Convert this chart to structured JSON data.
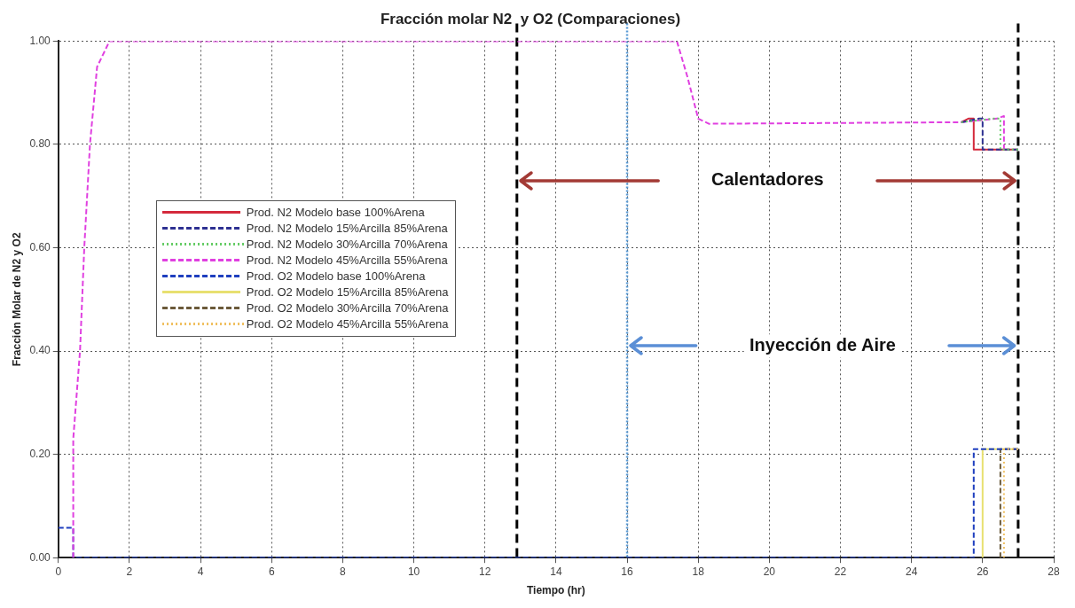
{
  "chart_data": {
    "type": "line",
    "title": "Fracción molar N2  y O2 (Comparaciones)",
    "xlabel": "Tiempo (hr)",
    "ylabel": "Fracción Molar de N2 y O2",
    "xlim": [
      0,
      28
    ],
    "xticks": [
      0,
      2,
      4,
      6,
      8,
      10,
      12,
      14,
      16,
      18,
      20,
      22,
      24,
      26,
      28
    ],
    "ylim": [
      0,
      1
    ],
    "yticks": [
      {
        "value": 0,
        "label": "0.00"
      },
      {
        "value": 0.2,
        "label": "0.20"
      },
      {
        "value": 0.4,
        "label": "0.40"
      },
      {
        "value": 0.6,
        "label": "0.60"
      },
      {
        "value": 0.8,
        "label": "0.80"
      },
      {
        "value": 1,
        "label": "1.00"
      }
    ],
    "grid": true,
    "legend": "left",
    "marker": "none",
    "series": [
      {
        "name": "Prod. N2 Modelo base 100%Arena",
        "color": "#d42a3c",
        "line_style": "solid",
        "x": [
          25.4,
          25.6,
          25.75,
          25.75,
          27.0
        ],
        "values": [
          0.843,
          0.85,
          0.85,
          0.79,
          0.79
        ]
      },
      {
        "name": "Prod. N2 Modelo 15%Arcilla 85%Arena",
        "color": "#2e3192",
        "line_style": "dashed",
        "x": [
          25.4,
          25.9,
          26.0,
          26.0,
          27.0
        ],
        "values": [
          0.843,
          0.85,
          0.85,
          0.79,
          0.79
        ]
      },
      {
        "name": "Prod. N2 Modelo 30%Arcilla 70%Arena",
        "color": "#66cc66",
        "line_style": "dotted",
        "x": [
          25.4,
          26.3,
          26.5,
          26.5,
          27.0
        ],
        "values": [
          0.843,
          0.85,
          0.85,
          0.79,
          0.79
        ]
      },
      {
        "name": "Prod. N2 Modelo 45%Arcilla 55%Arena",
        "color": "#e040e0",
        "line_style": "dashed",
        "x": [
          0.42,
          0.42,
          0.61,
          0.73,
          0.89,
          1.09,
          1.44,
          17.4,
          17.7,
          18.0,
          18.3,
          25.4,
          26.4,
          26.6,
          26.6
        ],
        "values": [
          0,
          0.23,
          0.4,
          0.6,
          0.8,
          0.95,
          1.0,
          1.0,
          0.93,
          0.85,
          0.84,
          0.843,
          0.85,
          0.855,
          0.79
        ]
      },
      {
        "name": "Prod. O2 Modelo base 100%Arena",
        "color": "#1f3fbf",
        "line_style": "dashed",
        "x": [
          0,
          0.42,
          0.42,
          25.75,
          25.75,
          27.0
        ],
        "values": [
          0.058,
          0.058,
          0,
          0,
          0.21,
          0.21
        ]
      },
      {
        "name": "Prod. O2 Modelo 15%Arcilla 85%Arena",
        "color": "#e8e070",
        "line_style": "solid",
        "x": [
          26.0,
          26.0,
          27.0
        ],
        "values": [
          0,
          0.21,
          0.21
        ]
      },
      {
        "name": "Prod. O2 Modelo 30%Arcilla 70%Arena",
        "color": "#6b5a3a",
        "line_style": "dashed",
        "x": [
          26.5,
          26.5,
          27.0
        ],
        "values": [
          0,
          0.21,
          0.21
        ]
      },
      {
        "name": "Prod. O2 Modelo 45%Arcilla 55%Arena",
        "color": "#f0c060",
        "line_style": "dotted",
        "x": [
          26.6,
          26.6,
          27.0
        ],
        "values": [
          0,
          0.21,
          0.21
        ]
      }
    ],
    "ref_lines": [
      {
        "axis": "x",
        "value": 12.9,
        "color": "#000000",
        "line_style": "dashed"
      },
      {
        "axis": "x",
        "value": 16.0,
        "color": "#5b9bd5",
        "line_style": "dotted"
      },
      {
        "axis": "x",
        "value": 27.0,
        "color": "#000000",
        "line_style": "dashed"
      }
    ],
    "annotations": [
      "Calentadores",
      "Inyección de Aire"
    ]
  }
}
